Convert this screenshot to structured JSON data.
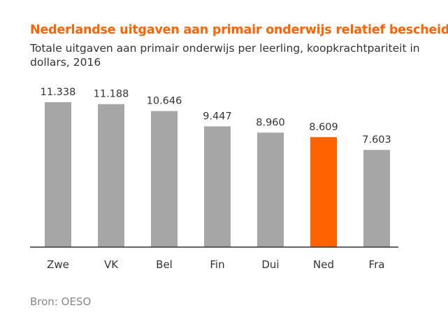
{
  "title": "Nederlandse uitgaven aan primair onderwijs relatief bescheiden",
  "subtitle": "Totale uitgaven aan primair onderwijs per leerling, koopkrachtpariteit in dollars, 2016",
  "source": "Bron: OESO",
  "chart_data": {
    "type": "bar",
    "categories": [
      "Zwe",
      "VK",
      "Bel",
      "Fin",
      "Dui",
      "Ned",
      "Fra"
    ],
    "values": [
      11338,
      11188,
      10646,
      9447,
      8960,
      8609,
      7603
    ],
    "labels": [
      "11.338",
      "11.188",
      "10.646",
      "9.447",
      "8.960",
      "8.609",
      "7.603"
    ],
    "ylim": [
      0,
      11338
    ],
    "grid": false,
    "legend": "none",
    "colors": {
      "default": "#A6A6A6",
      "highlight": "#FF6200",
      "highlight_category": "Ned",
      "axis": "#333333",
      "text": "#333333"
    }
  }
}
